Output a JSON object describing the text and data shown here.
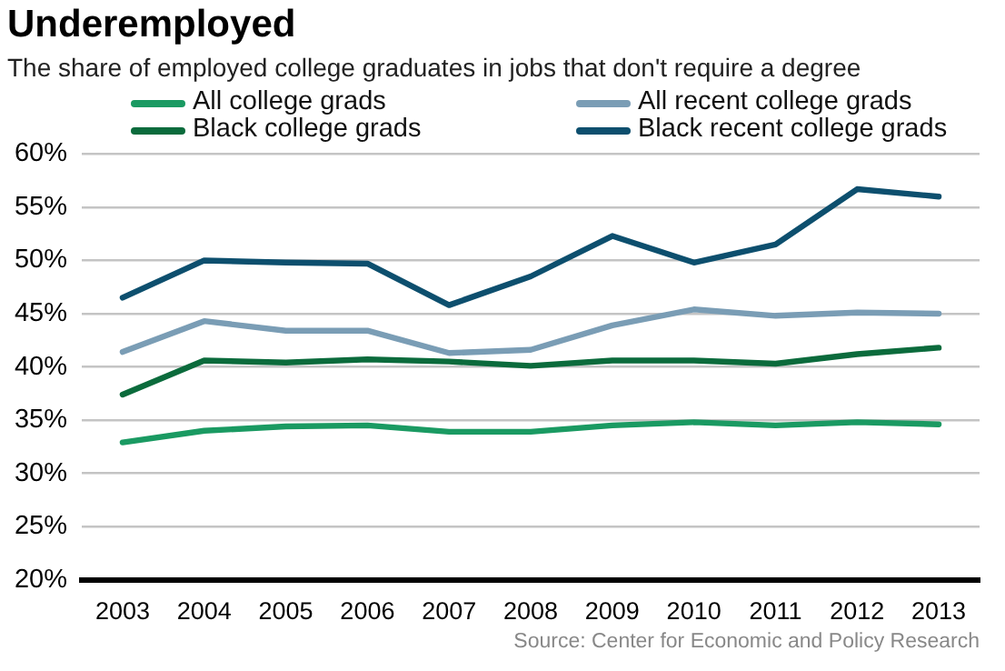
{
  "chart_data": {
    "type": "line",
    "title": "Underemployed",
    "subtitle": "The share of employed college graduates in jobs that don't require a degree",
    "categories": [
      "2003",
      "2004",
      "2005",
      "2006",
      "2007",
      "2008",
      "2009",
      "2010",
      "2011",
      "2012",
      "2013"
    ],
    "series": [
      {
        "name": "All college grads",
        "color": "#1a9a62",
        "values": [
          32.9,
          34.0,
          34.4,
          34.5,
          33.9,
          33.9,
          34.5,
          34.8,
          34.5,
          34.8,
          34.6
        ]
      },
      {
        "name": "All recent college grads",
        "color": "#7a9db5",
        "values": [
          41.4,
          44.3,
          43.4,
          43.4,
          41.3,
          41.6,
          43.9,
          45.4,
          44.8,
          45.1,
          45.0
        ]
      },
      {
        "name": "Black college grads",
        "color": "#0b6b3c",
        "values": [
          37.4,
          40.6,
          40.4,
          40.7,
          40.5,
          40.1,
          40.6,
          40.6,
          40.3,
          41.2,
          41.8
        ]
      },
      {
        "name": "Black recent college grads",
        "color": "#0d4f6e",
        "values": [
          46.5,
          50.0,
          49.8,
          49.7,
          45.8,
          48.5,
          52.3,
          49.8,
          51.5,
          56.7,
          56.0
        ]
      }
    ],
    "ylim": [
      20,
      60
    ],
    "yticks": [
      {
        "value": 20,
        "label": "20%"
      },
      {
        "value": 25,
        "label": "25%"
      },
      {
        "value": 30,
        "label": "30%"
      },
      {
        "value": 35,
        "label": "35%"
      },
      {
        "value": 40,
        "label": "40%"
      },
      {
        "value": 45,
        "label": "45%"
      },
      {
        "value": 50,
        "label": "50%"
      },
      {
        "value": 55,
        "label": "55%"
      },
      {
        "value": 60,
        "label": "60%"
      }
    ],
    "grid": "y",
    "legend": "top",
    "marker": "none",
    "line_style": "solid",
    "annotations": [
      "Source: Center for Economic and Policy Research"
    ]
  }
}
